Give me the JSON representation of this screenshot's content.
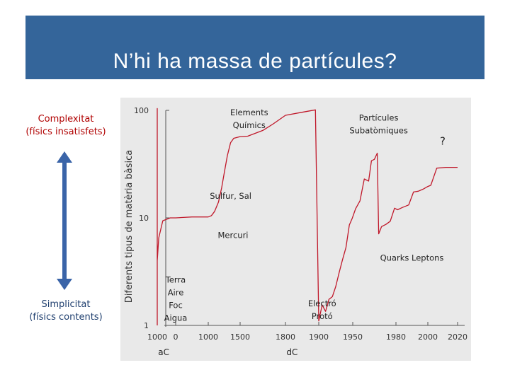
{
  "header": {
    "title": "N’hi ha massa de partícules?"
  },
  "scale_labels": {
    "complexity_title": "Complexitat",
    "complexity_sub": "(físics insatisfets)",
    "simplicity_title": "Simplicitat",
    "simplicity_sub": "(físics contents)"
  },
  "colors": {
    "banner": "#34659a",
    "curve": "#c0182a",
    "arrow": "#3a64a8",
    "complexity_text": "#b00000",
    "simplicity_text": "#1e3e6e"
  },
  "chart_data": {
    "type": "line",
    "title": "",
    "ylabel": "Diferents tipus de matèria bàsica",
    "yscale": "log",
    "ylim": [
      1,
      100
    ],
    "yticks": [
      {
        "value": 1,
        "label": "1"
      },
      {
        "value": 10,
        "label": "10"
      },
      {
        "value": 100,
        "label": "100"
      }
    ],
    "xticks": [
      {
        "value": -1000,
        "label": "1000"
      },
      {
        "value": 0,
        "label": "0"
      },
      {
        "value": 1000,
        "label": "1000"
      },
      {
        "value": 1500,
        "label": "1500"
      },
      {
        "value": 1800,
        "label": "1800"
      },
      {
        "value": 1900,
        "label": "1900"
      },
      {
        "value": 1950,
        "label": "1950"
      },
      {
        "value": 1980,
        "label": "1980"
      },
      {
        "value": 2000,
        "label": "2000"
      },
      {
        "value": 2020,
        "label": "2020"
      }
    ],
    "era_labels": [
      "aC",
      "dC"
    ],
    "grid": false,
    "series": [
      {
        "points": [
          [
            -1000,
            1
          ],
          [
            -1000,
            104
          ],
          [
            -1000,
            4
          ],
          [
            -920,
            6.5
          ],
          [
            -700,
            9.4
          ],
          [
            -300,
            10
          ],
          [
            0,
            10
          ],
          [
            500,
            10.2
          ],
          [
            1000,
            10.2
          ],
          [
            1050,
            10.5
          ],
          [
            1100,
            11.5
          ],
          [
            1160,
            14
          ],
          [
            1210,
            19
          ],
          [
            1250,
            26
          ],
          [
            1300,
            38
          ],
          [
            1350,
            50
          ],
          [
            1400,
            55
          ],
          [
            1500,
            57
          ],
          [
            1550,
            57.5
          ],
          [
            1650,
            65
          ],
          [
            1720,
            75
          ],
          [
            1770,
            84
          ],
          [
            1800,
            90
          ],
          [
            1850,
            96
          ],
          [
            1890,
            101
          ],
          [
            1900,
            1.1
          ],
          [
            1905,
            1.55
          ],
          [
            1910,
            1.35
          ],
          [
            1915,
            1.75
          ],
          [
            1920,
            1.85
          ],
          [
            1925,
            2.3
          ],
          [
            1930,
            3.1
          ],
          [
            1935,
            4.1
          ],
          [
            1940,
            5.3
          ],
          [
            1945,
            8.6
          ],
          [
            1949,
            9.8
          ],
          [
            1952,
            12.2
          ],
          [
            1955,
            14.4
          ],
          [
            1958,
            23
          ],
          [
            1961,
            22
          ],
          [
            1963,
            34
          ],
          [
            1965,
            35
          ],
          [
            1967,
            40
          ],
          [
            1968,
            7.1
          ],
          [
            1970,
            8.3
          ],
          [
            1973,
            8.7
          ],
          [
            1976,
            9.3
          ],
          [
            1979,
            12.3
          ],
          [
            1981,
            11.9
          ],
          [
            1984,
            12.5
          ],
          [
            1988,
            13.2
          ],
          [
            1991,
            17.4
          ],
          [
            1994,
            17.7
          ],
          [
            1997,
            18.5
          ],
          [
            2000,
            19.6
          ],
          [
            2002,
            20.1
          ],
          [
            2006,
            29
          ],
          [
            2012,
            29.5
          ],
          [
            2020,
            29.5
          ]
        ]
      }
    ],
    "annotations": [
      {
        "text": "Elements Químics",
        "x": 1560,
        "y": 90
      },
      {
        "text": "Partícules Subatòmiques",
        "x": 1968,
        "y": 80
      },
      {
        "text": "?",
        "x": 2010,
        "y": 48
      },
      {
        "text": "Sulfur, Sal",
        "x": 1025,
        "y": 15
      },
      {
        "text": "Mercuri",
        "x": 1150,
        "y": 6.5
      },
      {
        "text": "Quarks Leptons",
        "x": 1990,
        "y": 4
      },
      {
        "text": "Terra Aire Foc Aigua",
        "x": 0,
        "y": 2.5
      },
      {
        "text": "Electró Protó",
        "x": 1905,
        "y": 1.5
      }
    ]
  }
}
